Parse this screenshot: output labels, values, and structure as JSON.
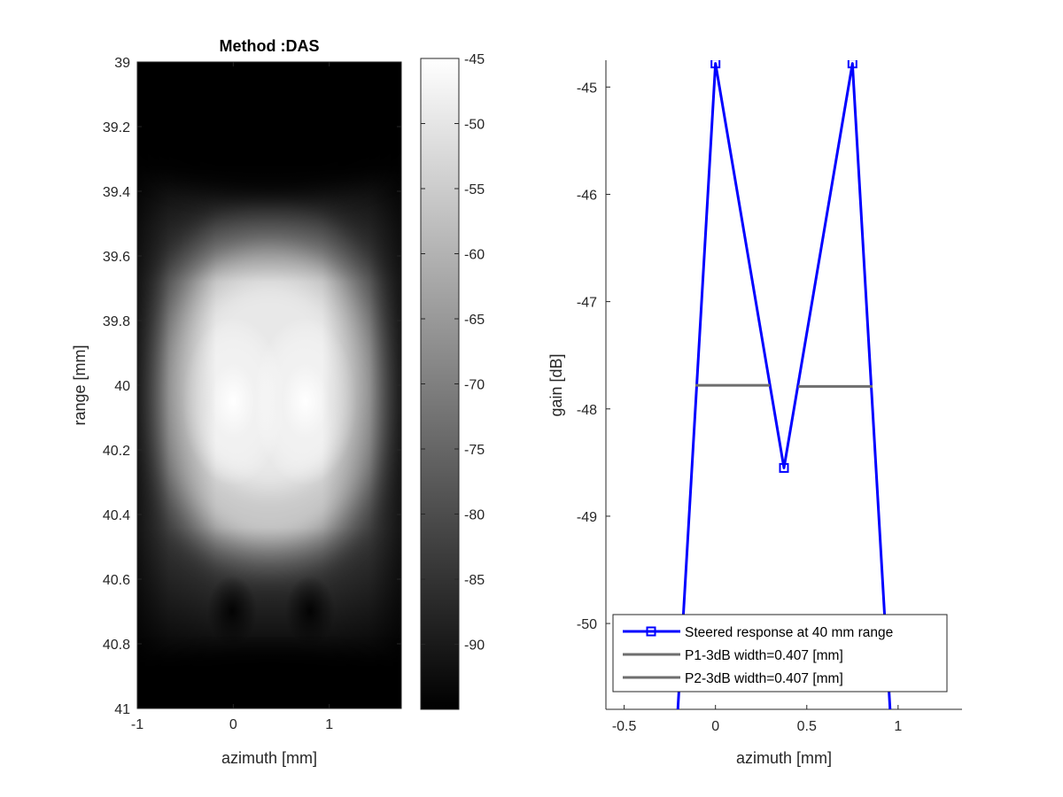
{
  "chart_data": [
    {
      "type": "heatmap",
      "title": "Method :DAS",
      "xlabel": "azimuth [mm]",
      "ylabel": "range [mm]",
      "xlim": [
        -1,
        1.75
      ],
      "ylim": [
        39,
        41
      ],
      "y_reversed": true,
      "x_ticks": [
        "-1",
        "0",
        "1"
      ],
      "y_ticks": [
        "39",
        "39.2",
        "39.4",
        "39.6",
        "39.8",
        "40",
        "40.2",
        "40.4",
        "40.6",
        "40.8",
        "41"
      ],
      "colormap": "gray",
      "colorbar": {
        "range": [
          -95,
          -45
        ],
        "ticks": [
          "-45",
          "-50",
          "-55",
          "-60",
          "-65",
          "-70",
          "-75",
          "-80",
          "-85",
          "-90"
        ]
      },
      "scatterers": [
        {
          "x": 0,
          "y": 40.05
        },
        {
          "x": 0.75,
          "y": 40.05
        }
      ]
    },
    {
      "type": "line",
      "xlabel": "azimuth [mm]",
      "ylabel": "gain [dB]",
      "xlim": [
        -0.6,
        1.35
      ],
      "ylim": [
        -50.8,
        -44.75
      ],
      "x_ticks": [
        "-0.5",
        "0",
        "0.5",
        "1"
      ],
      "y_ticks": [
        "-45",
        "-46",
        "-47",
        "-48",
        "-49",
        "-50"
      ],
      "legend_position": "bottom-right",
      "series": [
        {
          "name": "Steered response at 40 mm range",
          "color": "#0000ff",
          "marker": "square",
          "x": [
            -0.23,
            0,
            0.375,
            0.75,
            0.98
          ],
          "y": [
            -51.5,
            -44.78,
            -48.55,
            -44.78,
            -51.5
          ],
          "markers_x": [
            0,
            0.375,
            0.75
          ],
          "markers_y": [
            -44.78,
            -48.55,
            -44.78
          ]
        },
        {
          "name": "P1-3dB width=0.407 [mm]",
          "color": "#6e6e6e",
          "x": [
            -0.11,
            0.297
          ],
          "y": [
            -47.78,
            -47.78
          ]
        },
        {
          "name": "P2-3dB width=0.407 [mm]",
          "color": "#6e6e6e",
          "x": [
            0.453,
            0.86
          ],
          "y": [
            -47.79,
            -47.79
          ]
        }
      ]
    }
  ]
}
